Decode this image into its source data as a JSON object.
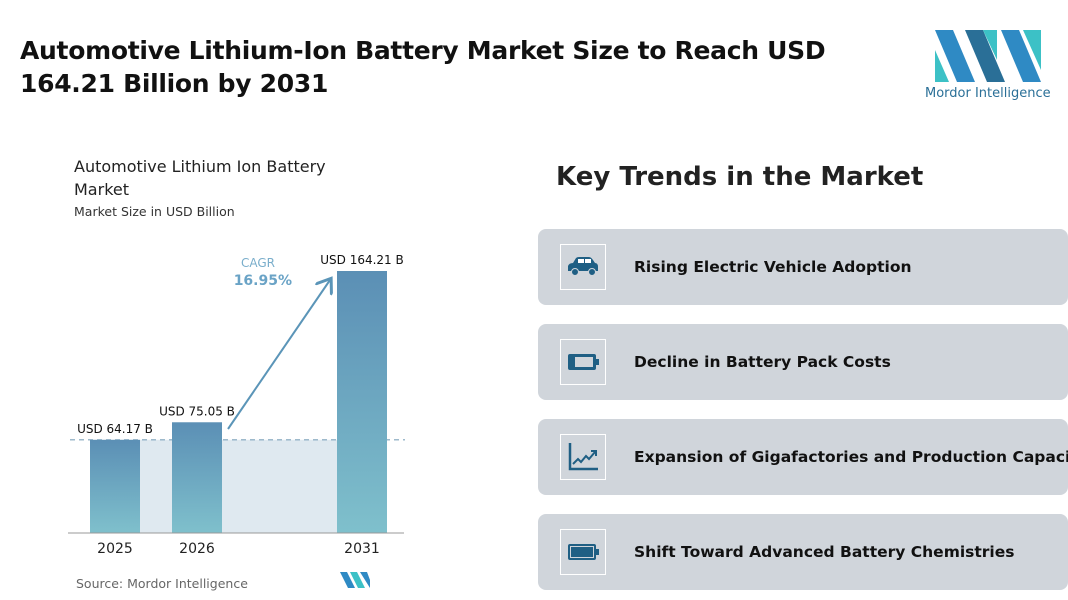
{
  "header": {
    "title": "Automotive Lithium-Ion Battery Market Size to Reach USD 164.21 Billion by 2031",
    "logo_text": "Mordor Intelligence"
  },
  "chart_data": {
    "type": "bar",
    "title": "Automotive Lithium Ion Battery Market",
    "subtitle": "Market Size in USD Billion",
    "categories": [
      "2025",
      "2026",
      "2031"
    ],
    "values": [
      64.17,
      75.05,
      164.21
    ],
    "data_labels": [
      "USD 64.17 B",
      "USD 75.05 B",
      "USD 164.21 B"
    ],
    "annotation": {
      "label": "CAGR",
      "value": "16.95%"
    },
    "source": "Source:  Mordor Intelligence",
    "colors": {
      "bar_top": "#5b8fb5",
      "bar_bottom": "#7fc0cc",
      "shade": "#dfe9f0",
      "arrow": "#5b95b8"
    }
  },
  "trends": {
    "heading": "Key Trends in the Market",
    "items": [
      {
        "icon": "car-icon",
        "label": "Rising Electric Vehicle Adoption"
      },
      {
        "icon": "battery-low-icon",
        "label": "Decline in Battery Pack Costs"
      },
      {
        "icon": "chart-up-icon",
        "label": "Expansion of Gigafactories and Production Capacity"
      },
      {
        "icon": "battery-full-icon",
        "label": "Shift Toward Advanced Battery Chemistries"
      }
    ]
  }
}
